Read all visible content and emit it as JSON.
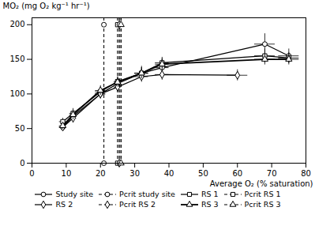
{
  "chart_data": {
    "type": "line",
    "xlabel": "Average O₂ (% saturation)",
    "ylabel": "MO₂ (mg O₂ kg⁻¹ hr⁻¹)",
    "xlim": [
      0,
      80
    ],
    "ylim": [
      0,
      210
    ],
    "xticks": [
      0,
      10,
      20,
      30,
      40,
      50,
      60,
      70,
      80
    ],
    "yticks": [
      0,
      50,
      100,
      150,
      200
    ],
    "grid": false,
    "legend": "bottom",
    "series": [
      {
        "name": "Study site",
        "type": "line",
        "color": "black",
        "marker": "circle",
        "line_style": "solid",
        "x": [
          9,
          12,
          20,
          25,
          32,
          38,
          68,
          75
        ],
        "values": [
          52,
          68,
          100,
          115,
          130,
          138,
          172,
          155
        ],
        "xerr": [
          1,
          1,
          1.5,
          1,
          2,
          2,
          3,
          3
        ],
        "yerr": [
          5,
          8,
          7,
          8,
          10,
          12,
          15,
          10
        ]
      },
      {
        "name": "Pcrit study site",
        "type": "vline",
        "color": "black",
        "marker": "circle",
        "line_style": "dashed",
        "x": [
          21,
          21
        ],
        "values": [
          200,
          0
        ]
      },
      {
        "name": "RS 1",
        "type": "line",
        "color": "black",
        "marker": "square",
        "line_style": "solid",
        "x": [
          9,
          12,
          20,
          25,
          32,
          38,
          68,
          75
        ],
        "values": [
          60,
          72,
          103,
          118,
          130,
          145,
          155,
          152
        ],
        "xerr": [
          1,
          1,
          1.5,
          1,
          2,
          2,
          3,
          3
        ],
        "yerr": [
          5,
          7,
          7,
          7,
          8,
          8,
          10,
          8
        ]
      },
      {
        "name": "Pcrit RS 1",
        "type": "vline",
        "color": "black",
        "marker": "square",
        "line_style": "dashed",
        "x": [
          25,
          25
        ],
        "values": [
          200,
          0
        ]
      },
      {
        "name": "RS 2",
        "type": "line",
        "color": "black",
        "marker": "diamond",
        "line_style": "solid",
        "x": [
          9,
          12,
          20,
          25,
          32,
          38,
          60
        ],
        "values": [
          52,
          65,
          100,
          110,
          125,
          128,
          127
        ],
        "xerr": [
          1,
          1,
          1.5,
          1,
          2,
          2,
          3
        ],
        "yerr": [
          5,
          7,
          7,
          7,
          8,
          8,
          8
        ]
      },
      {
        "name": "Pcrit RS 2",
        "type": "vline",
        "color": "black",
        "marker": "diamond",
        "line_style": "dashed",
        "x": [
          25.5,
          25.5
        ],
        "values": [
          200,
          0
        ]
      },
      {
        "name": "RS 3",
        "type": "line",
        "color": "black",
        "marker": "triangle",
        "line_style": "solid",
        "x": [
          9,
          12,
          20,
          25,
          32,
          38,
          68,
          75
        ],
        "values": [
          54,
          70,
          105,
          117,
          130,
          143,
          150,
          150
        ],
        "xerr": [
          1,
          1,
          1.5,
          1,
          2,
          2,
          3,
          3
        ],
        "yerr": [
          5,
          7,
          7,
          7,
          8,
          8,
          8,
          8
        ]
      },
      {
        "name": "Pcrit RS 3",
        "type": "vline",
        "color": "black",
        "marker": "triangle",
        "line_style": "dashed",
        "x": [
          26,
          26
        ],
        "values": [
          200,
          0
        ]
      }
    ]
  }
}
